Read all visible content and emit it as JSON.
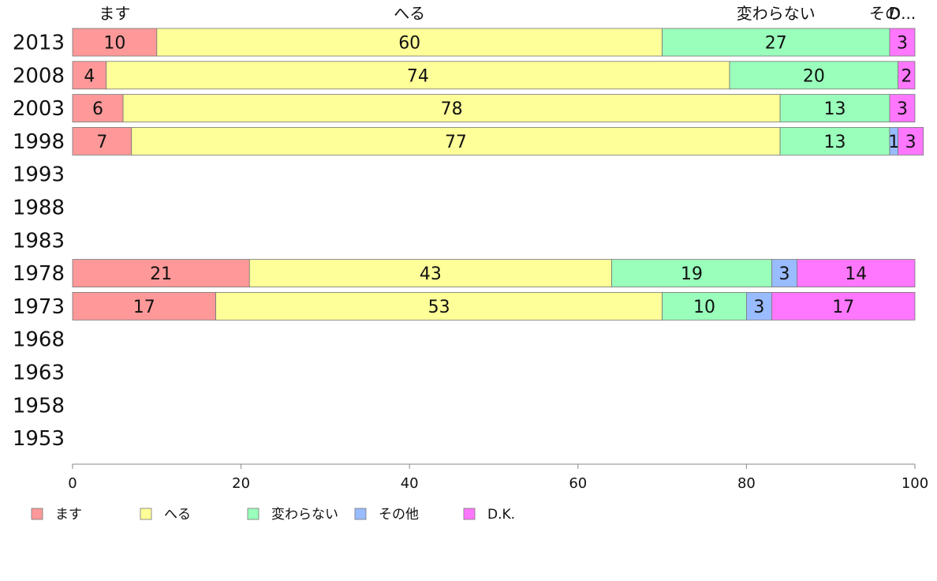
{
  "chart_data": {
    "type": "bar",
    "orientation": "horizontal",
    "stacked": true,
    "categories": [
      "2013",
      "2008",
      "2003",
      "1998",
      "1993",
      "1988",
      "1983",
      "1978",
      "1973",
      "1968",
      "1963",
      "1958",
      "1953"
    ],
    "series": [
      {
        "name": "ます",
        "color": "#ff9999",
        "values": [
          10,
          4,
          6,
          7,
          null,
          null,
          null,
          21,
          17,
          null,
          null,
          null,
          null
        ]
      },
      {
        "name": "へる",
        "color": "#ffff99",
        "values": [
          60,
          74,
          78,
          77,
          null,
          null,
          null,
          43,
          53,
          null,
          null,
          null,
          null
        ]
      },
      {
        "name": "変わらない",
        "color": "#99ffbb",
        "values": [
          27,
          20,
          13,
          13,
          null,
          null,
          null,
          19,
          10,
          null,
          null,
          null,
          null
        ]
      },
      {
        "name": "その他",
        "color": "#99bbff",
        "values": [
          0,
          0,
          0,
          1,
          null,
          null,
          null,
          3,
          3,
          null,
          null,
          null,
          null
        ]
      },
      {
        "name": "D.K.",
        "color": "#ff77ff",
        "values": [
          3,
          2,
          3,
          3,
          null,
          null,
          null,
          14,
          17,
          null,
          null,
          null,
          null
        ]
      }
    ],
    "top_labels": [
      "ます",
      "へる",
      "変わらない",
      "その",
      "D..."
    ],
    "xlim": [
      0,
      100
    ],
    "xticks": [
      "0",
      "20",
      "40",
      "60",
      "80",
      "100"
    ],
    "legend_position": "bottom",
    "title": "",
    "xlabel": "",
    "ylabel": ""
  }
}
